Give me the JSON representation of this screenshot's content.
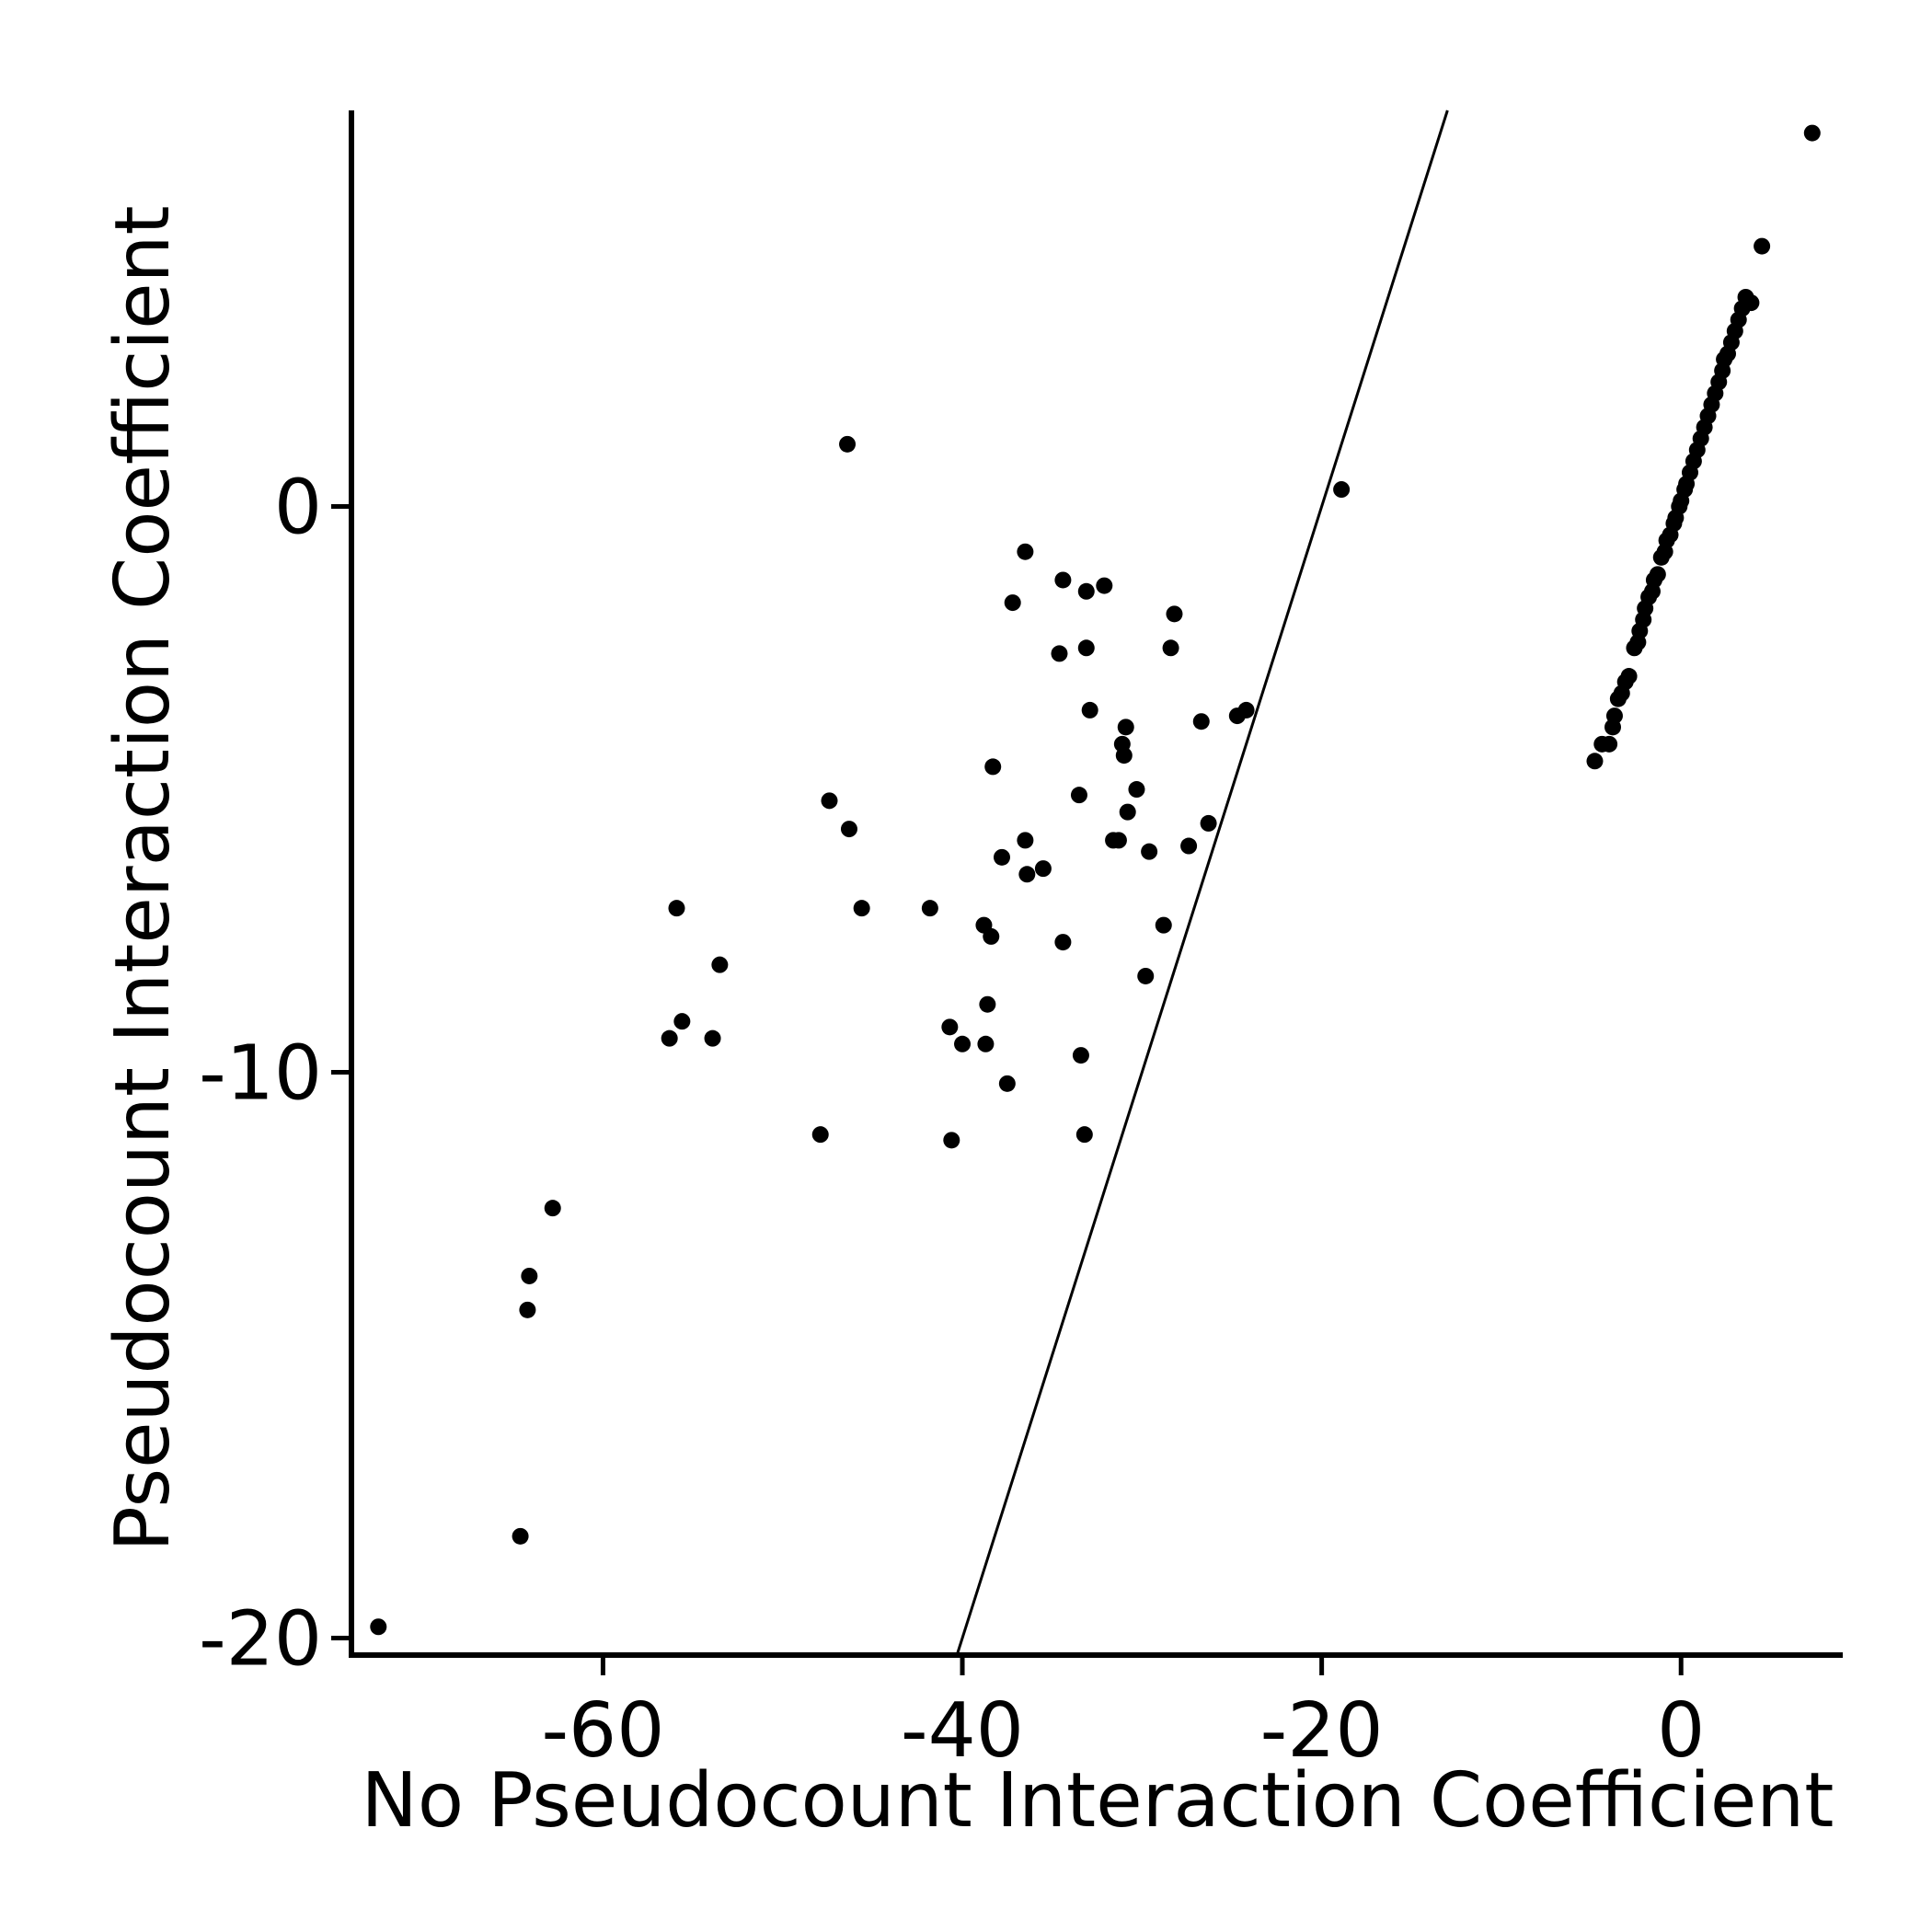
{
  "chart_data": {
    "type": "scatter",
    "title": "",
    "xlabel": "No Pseudocount Interaction Coefficient",
    "ylabel": "Pseudocount Interaction Coefficient",
    "xlim": [
      -74,
      9
    ],
    "ylim": [
      -20.3,
      7
    ],
    "xticks": [
      -60,
      -40,
      -20,
      0
    ],
    "yticks": [
      -20,
      -10,
      0
    ],
    "xtick_labels": [
      "-60",
      "-40",
      "-20",
      "0"
    ],
    "ytick_labels": [
      "-20",
      "-10",
      "0"
    ],
    "grid": false,
    "legend": "none",
    "reference_line": {
      "slope": 1,
      "intercept": 20,
      "color": "#000000"
    },
    "point_color": "#000000",
    "series": [
      {
        "points": [
          [
            -72.5,
            -19.8
          ],
          [
            -64.6,
            -18.2
          ],
          [
            -64.2,
            -14.2
          ],
          [
            -64.1,
            -13.6
          ],
          [
            -62.8,
            -12.4
          ],
          [
            -56.3,
            -9.4
          ],
          [
            -55.6,
            -9.1
          ],
          [
            -55.9,
            -7.1
          ],
          [
            -53.9,
            -9.4
          ],
          [
            -53.5,
            -8.1
          ],
          [
            -47.9,
            -11.1
          ],
          [
            -47.4,
            -5.2
          ],
          [
            -46.3,
            -5.7
          ],
          [
            -45.6,
            -7.1
          ],
          [
            -46.4,
            1.1
          ],
          [
            -41.8,
            -7.1
          ],
          [
            -40.7,
            -9.2
          ],
          [
            -40.6,
            -11.2
          ],
          [
            -40.0,
            -9.5
          ],
          [
            -38.8,
            -7.4
          ],
          [
            -38.7,
            -9.5
          ],
          [
            -38.6,
            -8.8
          ],
          [
            -38.4,
            -7.6
          ],
          [
            -38.3,
            -4.6
          ],
          [
            -37.8,
            -6.2
          ],
          [
            -37.5,
            -10.2
          ],
          [
            -37.2,
            -1.7
          ],
          [
            -36.5,
            -5.9
          ],
          [
            -36.4,
            -6.5
          ],
          [
            -36.5,
            -0.8
          ],
          [
            -35.5,
            -6.4
          ],
          [
            -34.6,
            -2.6
          ],
          [
            -34.4,
            -7.7
          ],
          [
            -34.4,
            -1.3
          ],
          [
            -33.5,
            -5.1
          ],
          [
            -33.4,
            -9.7
          ],
          [
            -33.2,
            -11.1
          ],
          [
            -33.1,
            -1.5
          ],
          [
            -33.1,
            -2.5
          ],
          [
            -32.9,
            -3.6
          ],
          [
            -32.1,
            -1.4
          ],
          [
            -31.6,
            -5.9
          ],
          [
            -31.3,
            -5.9
          ],
          [
            -31.1,
            -4.2
          ],
          [
            -31.0,
            -4.4
          ],
          [
            -30.9,
            -3.9
          ],
          [
            -30.8,
            -5.4
          ],
          [
            -30.3,
            -5.0
          ],
          [
            -29.8,
            -8.3
          ],
          [
            -29.6,
            -6.1
          ],
          [
            -28.8,
            -7.4
          ],
          [
            -28.4,
            -2.5
          ],
          [
            -28.2,
            -1.9
          ],
          [
            -27.4,
            -6.0
          ],
          [
            -26.7,
            -3.8
          ],
          [
            -26.3,
            -5.6
          ],
          [
            -24.7,
            -3.7
          ],
          [
            -24.2,
            -3.6
          ],
          [
            -18.9,
            0.3
          ],
          [
            -4.8,
            -4.5
          ],
          [
            -4.4,
            -4.2
          ],
          [
            -4.0,
            -4.2
          ],
          [
            -3.8,
            -3.9
          ],
          [
            -3.7,
            -3.7
          ],
          [
            -3.5,
            -3.4
          ],
          [
            -3.3,
            -3.3
          ],
          [
            -3.1,
            -3.1
          ],
          [
            -2.9,
            -3.0
          ],
          [
            -2.6,
            -2.5
          ],
          [
            -2.4,
            -2.4
          ],
          [
            -2.3,
            -2.2
          ],
          [
            -2.1,
            -2.0
          ],
          [
            -2.0,
            -1.8
          ],
          [
            -1.8,
            -1.6
          ],
          [
            -1.6,
            -1.5
          ],
          [
            -1.5,
            -1.3
          ],
          [
            -1.3,
            -1.2
          ],
          [
            -1.1,
            -0.9
          ],
          [
            -0.9,
            -0.8
          ],
          [
            -0.8,
            -0.6
          ],
          [
            -0.6,
            -0.5
          ],
          [
            -0.4,
            -0.3
          ],
          [
            -0.3,
            -0.2
          ],
          [
            -0.1,
            0.0
          ],
          [
            0.0,
            0.1
          ],
          [
            0.2,
            0.3
          ],
          [
            0.3,
            0.4
          ],
          [
            0.5,
            0.6
          ],
          [
            0.7,
            0.8
          ],
          [
            0.9,
            1.0
          ],
          [
            1.1,
            1.2
          ],
          [
            1.3,
            1.4
          ],
          [
            1.5,
            1.6
          ],
          [
            1.7,
            1.8
          ],
          [
            1.9,
            2.0
          ],
          [
            2.1,
            2.2
          ],
          [
            2.3,
            2.4
          ],
          [
            2.4,
            2.6
          ],
          [
            2.6,
            2.7
          ],
          [
            2.8,
            2.9
          ],
          [
            3.0,
            3.1
          ],
          [
            3.2,
            3.3
          ],
          [
            3.4,
            3.5
          ],
          [
            3.6,
            3.7
          ],
          [
            3.9,
            3.6
          ],
          [
            4.5,
            4.6
          ],
          [
            7.3,
            6.6
          ]
        ]
      }
    ]
  }
}
